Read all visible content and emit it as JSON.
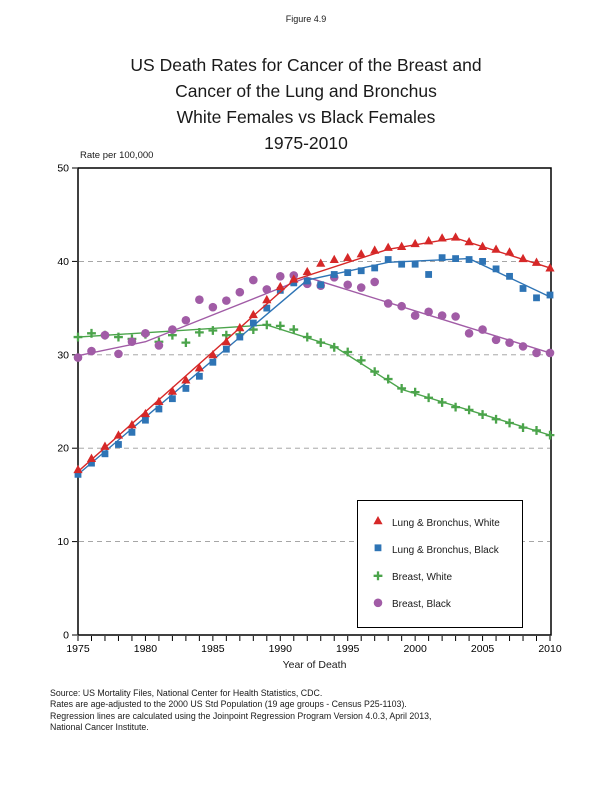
{
  "page": {
    "figure_label": "Figure 4.9",
    "title_lines": [
      "US Death Rates for Cancer of the Breast and",
      "Cancer of the Lung and Bronchus",
      "White Females vs Black Females",
      "1975-2010"
    ],
    "y_axis_caption": "Rate per 100,000",
    "x_axis_label": "Year of Death",
    "footer_lines": [
      "Source: US Mortality Files, National Center for Health Statistics, CDC.",
      "Rates are age-adjusted to the 2000 US Std Population (19 age groups - Census P25-1103).",
      "Regression lines are calculated using the Joinpoint Regression Program Version 4.0.3, April 2013,",
      "National Cancer Institute."
    ]
  },
  "chart_data": {
    "type": "scatter",
    "title": "US Death Rates for Cancer of the Breast and Cancer of the Lung and Bronchus, White Females vs Black Females, 1975-2010",
    "xlabel": "Year of Death",
    "ylabel": "Rate per 100,000",
    "xlim": [
      1975,
      2010
    ],
    "ylim": [
      0,
      50
    ],
    "x_ticks_labeled": [
      1975,
      1980,
      1985,
      1990,
      1995,
      2000,
      2005,
      2010
    ],
    "x_minor_tick_interval": 1,
    "y_ticks": [
      0,
      10,
      20,
      30,
      40,
      50
    ],
    "gridlines_y_dashed": [
      10,
      20,
      30,
      40
    ],
    "legend_position": "lower right inside",
    "x": [
      1975,
      1976,
      1977,
      1978,
      1979,
      1980,
      1981,
      1982,
      1983,
      1984,
      1985,
      1986,
      1987,
      1988,
      1989,
      1990,
      1991,
      1992,
      1993,
      1994,
      1995,
      1996,
      1997,
      1998,
      1999,
      2000,
      2001,
      2002,
      2003,
      2004,
      2005,
      2006,
      2007,
      2008,
      2009,
      2010
    ],
    "series": [
      {
        "name": "Lung & Bronchus, White",
        "marker": "triangle",
        "color": "#d62828",
        "values": [
          17.7,
          18.9,
          20.2,
          21.4,
          22.5,
          23.7,
          25.0,
          26.1,
          27.3,
          28.6,
          30.0,
          31.4,
          32.9,
          34.3,
          35.9,
          37.3,
          38.1,
          38.9,
          39.8,
          40.2,
          40.4,
          40.8,
          41.2,
          41.5,
          41.6,
          41.9,
          42.2,
          42.5,
          42.6,
          42.1,
          41.6,
          41.3,
          41.0,
          40.3,
          39.9,
          39.3
        ],
        "trend_joinpoints": [
          [
            1975,
            17.5
          ],
          [
            1991,
            38.0
          ],
          [
            1998,
            41.3
          ],
          [
            2003,
            42.5
          ],
          [
            2010,
            39.3
          ]
        ]
      },
      {
        "name": "Lung & Bronchus, Black",
        "marker": "square",
        "color": "#2e74b5",
        "values": [
          17.2,
          18.4,
          19.4,
          20.4,
          21.7,
          23.0,
          24.2,
          25.3,
          26.4,
          27.7,
          29.2,
          30.6,
          31.9,
          33.4,
          35.0,
          36.9,
          37.7,
          37.9,
          37.5,
          38.6,
          38.8,
          39.0,
          39.3,
          40.2,
          39.7,
          39.7,
          38.6,
          40.4,
          40.3,
          40.2,
          40.0,
          39.2,
          38.4,
          37.1,
          36.1,
          36.4
        ],
        "trend_joinpoints": [
          [
            1975,
            17.2
          ],
          [
            1992,
            38.0
          ],
          [
            1998,
            39.9
          ],
          [
            2004,
            40.3
          ],
          [
            2010,
            36.2
          ]
        ]
      },
      {
        "name": "Breast, White",
        "marker": "plus",
        "color": "#4ba44b",
        "values": [
          31.9,
          32.3,
          32.1,
          31.9,
          31.7,
          32.2,
          31.4,
          32.1,
          31.3,
          32.4,
          32.6,
          32.1,
          32.2,
          32.7,
          33.2,
          33.1,
          32.7,
          31.9,
          31.3,
          30.8,
          30.3,
          29.4,
          28.2,
          27.4,
          26.4,
          26.0,
          25.4,
          24.9,
          24.4,
          24.1,
          23.6,
          23.1,
          22.7,
          22.2,
          21.9,
          21.4
        ],
        "trend_joinpoints": [
          [
            1975,
            31.9
          ],
          [
            1989,
            33.2
          ],
          [
            1994,
            30.9
          ],
          [
            1999,
            26.3
          ],
          [
            2010,
            21.4
          ]
        ]
      },
      {
        "name": "Breast, Black",
        "marker": "circle",
        "color": "#a15ca6",
        "values": [
          29.7,
          30.4,
          32.1,
          30.1,
          31.4,
          32.3,
          31.0,
          32.7,
          33.7,
          35.9,
          35.1,
          35.8,
          36.7,
          38.0,
          37.0,
          38.4,
          38.5,
          37.6,
          37.4,
          38.3,
          37.5,
          37.2,
          37.8,
          35.5,
          35.2,
          34.2,
          34.6,
          34.2,
          34.1,
          32.3,
          32.7,
          31.6,
          31.3,
          30.9,
          30.2,
          30.2
        ],
        "trend_joinpoints": [
          [
            1975,
            29.9
          ],
          [
            1980,
            31.4
          ],
          [
            1992,
            38.3
          ],
          [
            2010,
            30.2
          ]
        ]
      }
    ]
  }
}
